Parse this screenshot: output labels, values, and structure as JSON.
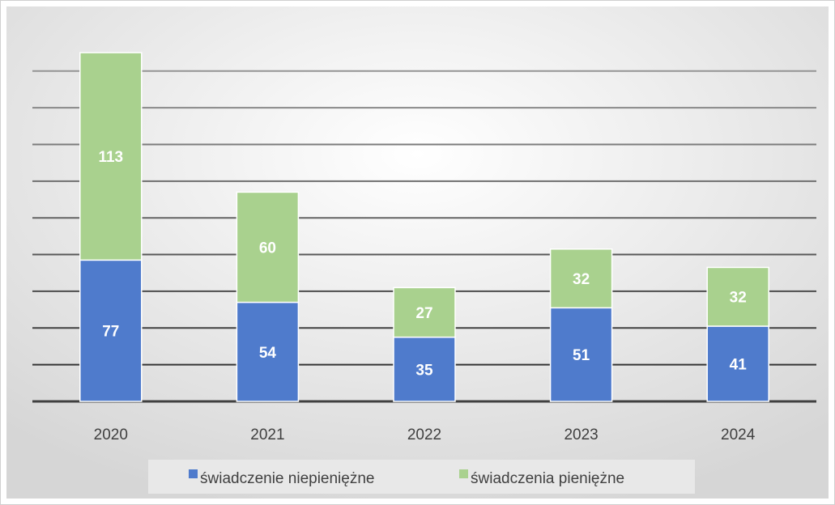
{
  "chart_data": {
    "type": "stacked_bar",
    "categories": [
      "2020",
      "2021",
      "2022",
      "2023",
      "2024"
    ],
    "series": [
      {
        "name": "świadczenie niepieniężne",
        "color": "#4f7bcc",
        "values": [
          77,
          54,
          35,
          51,
          41
        ]
      },
      {
        "name": "świadczenia pieniężne",
        "color": "#a9d18e",
        "values": [
          113,
          60,
          27,
          32,
          32
        ]
      }
    ],
    "ylim": [
      0,
      200
    ],
    "yticks": [
      0,
      20,
      40,
      60,
      80,
      100,
      120,
      140,
      160,
      180
    ],
    "grid": true,
    "legend": "bottom"
  }
}
